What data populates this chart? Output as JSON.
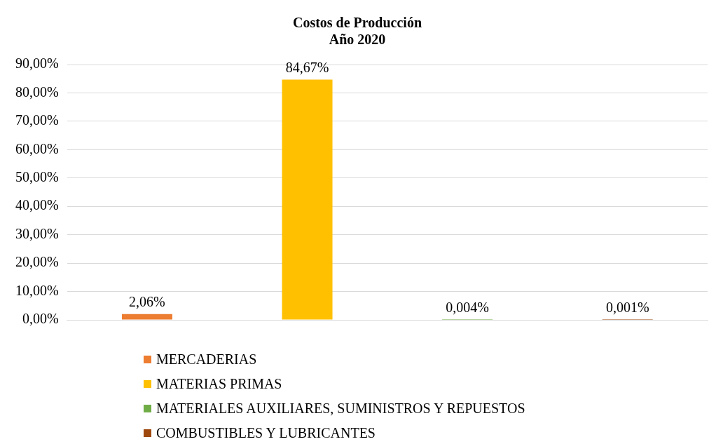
{
  "chart_data": {
    "type": "bar",
    "title": "Costos de Producción\nAño 2020",
    "categories": [
      null
    ],
    "series": [
      {
        "name": "MERCADERIAS",
        "color": "#ed7d31",
        "values": [
          2.06
        ],
        "value_labels": [
          "2,06%"
        ]
      },
      {
        "name": "MATERIAS PRIMAS",
        "color": "#ffc000",
        "values": [
          84.67
        ],
        "value_labels": [
          "84,67%"
        ]
      },
      {
        "name": "MATERIALES AUXILIARES, SUMINISTROS Y REPUESTOS",
        "color": "#70ad47",
        "values": [
          0.004
        ],
        "value_labels": [
          "0,004%"
        ]
      },
      {
        "name": "COMBUSTIBLES Y LUBRICANTES",
        "color": "#9e480e",
        "values": [
          0.001
        ],
        "value_labels": [
          "0,001%"
        ]
      }
    ],
    "ylim": [
      0,
      90
    ],
    "yticks": [
      {
        "value": 0,
        "label": "0,00%"
      },
      {
        "value": 10,
        "label": "10,00%"
      },
      {
        "value": 20,
        "label": "20,00%"
      },
      {
        "value": 30,
        "label": "30,00%"
      },
      {
        "value": 40,
        "label": "40,00%"
      },
      {
        "value": 50,
        "label": "50,00%"
      },
      {
        "value": 60,
        "label": "60,00%"
      },
      {
        "value": 70,
        "label": "70,00%"
      },
      {
        "value": 80,
        "label": "80,00%"
      },
      {
        "value": 90,
        "label": "90,00%"
      }
    ],
    "grid": "y",
    "legend": "bottom"
  }
}
